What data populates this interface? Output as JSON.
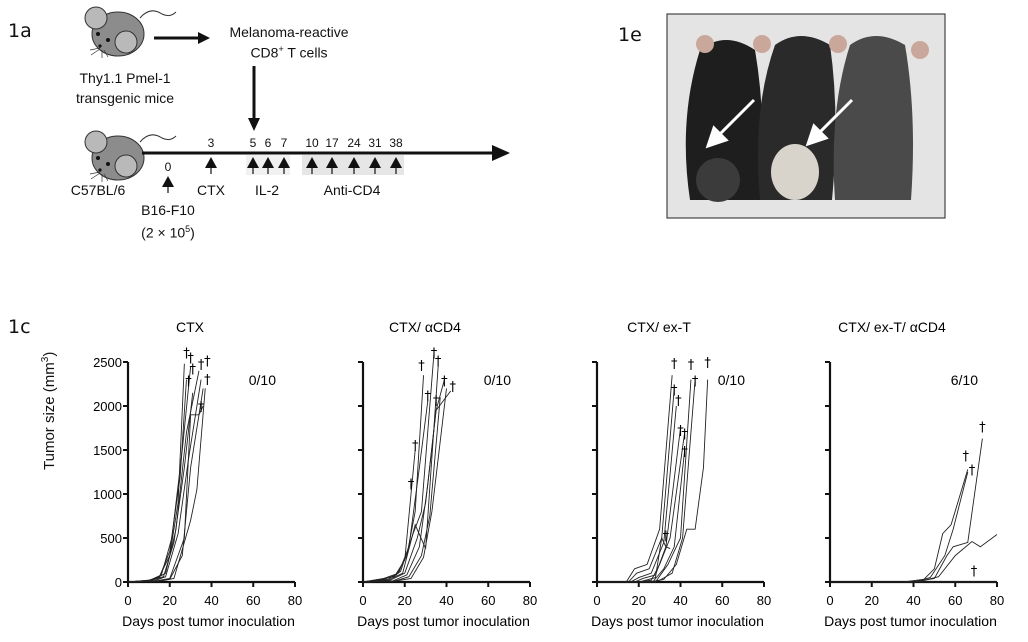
{
  "panel_labels": {
    "a": "1a",
    "e": "1e",
    "c": "1c"
  },
  "schematic": {
    "donor_label_1": "Thy1.1 Pmel-1",
    "donor_label_2": "transgenic mice",
    "cells_label_1": "Melanoma-reactive",
    "cells_label_2_main": "CD8",
    "cells_label_2_sup": "+",
    "cells_label_2_rest": " T cells",
    "host_label": "C57BL/6",
    "inoculation_day": "0",
    "inoculation_label": "B16-F10",
    "inoculation_dose_main": "(2 × 10",
    "inoculation_dose_sup": "5",
    "inoculation_dose_end": ")",
    "ctx_day": "3",
    "il2_days": [
      "5",
      "6",
      "7"
    ],
    "anticd4_days": [
      "10",
      "17",
      "24",
      "31",
      "38"
    ],
    "ctx_label": "CTX",
    "il2_label": "IL-2",
    "anticd4_label": "Anti-CD4",
    "icons": [
      "mouse-icon",
      "arrow-right-icon",
      "arrow-down-icon",
      "arrow-up-icon"
    ]
  },
  "photo": {
    "description_icon": "mice-photo",
    "arrows": 2
  },
  "chart_data": [
    {
      "type": "line",
      "title": "CTX",
      "annotation": "0/10",
      "xlabel": "Days post tumor inoculation",
      "ylabel": "Tumor size (mm",
      "ylabel_sup": "3",
      "ylabel_end": ")",
      "xlim": [
        0,
        80
      ],
      "ylim": [
        0,
        2500
      ],
      "xticks": [
        0,
        20,
        40,
        60,
        80
      ],
      "yticks": [
        0,
        500,
        1000,
        1500,
        2000,
        2500
      ],
      "show_ytick_labels": true,
      "series": [
        {
          "points": [
            [
              0,
              0
            ],
            [
              10,
              20
            ],
            [
              15,
              60
            ],
            [
              20,
              300
            ],
            [
              24,
              900
            ],
            [
              27,
              2480
            ]
          ]
        },
        {
          "points": [
            [
              0,
              0
            ],
            [
              10,
              20
            ],
            [
              15,
              50
            ],
            [
              20,
              350
            ],
            [
              25,
              1200
            ],
            [
              28,
              2300
            ]
          ]
        },
        {
          "points": [
            [
              0,
              0
            ],
            [
              10,
              15
            ],
            [
              16,
              80
            ],
            [
              21,
              500
            ],
            [
              26,
              1500
            ],
            [
              30,
              2450
            ]
          ]
        },
        {
          "points": [
            [
              0,
              0
            ],
            [
              10,
              10
            ],
            [
              17,
              60
            ],
            [
              22,
              450
            ],
            [
              27,
              1300
            ],
            [
              31,
              2150
            ]
          ]
        },
        {
          "points": [
            [
              0,
              0
            ],
            [
              12,
              20
            ],
            [
              18,
              100
            ],
            [
              23,
              600
            ],
            [
              28,
              1700
            ],
            [
              34,
              2400
            ]
          ]
        },
        {
          "points": [
            [
              0,
              0
            ],
            [
              12,
              10
            ],
            [
              18,
              60
            ],
            [
              24,
              550
            ],
            [
              29,
              1400
            ],
            [
              35,
              2300
            ]
          ]
        },
        {
          "points": [
            [
              0,
              0
            ],
            [
              14,
              10
            ],
            [
              20,
              30
            ],
            [
              26,
              300
            ],
            [
              30,
              1300
            ],
            [
              36,
              2200
            ]
          ]
        },
        {
          "points": [
            [
              0,
              0
            ],
            [
              15,
              10
            ],
            [
              22,
              40
            ],
            [
              30,
              700
            ],
            [
              33,
              1050
            ],
            [
              37,
              2200
            ]
          ]
        },
        {
          "points": [
            [
              0,
              0
            ],
            [
              13,
              10
            ],
            [
              20,
              40
            ],
            [
              27,
              500
            ],
            [
              30,
              1900
            ],
            [
              34,
              1900
            ],
            [
              36,
              2000
            ]
          ]
        }
      ],
      "deaths": [
        [
          28,
          2620
        ],
        [
          30,
          2560
        ],
        [
          29,
          2300
        ],
        [
          31,
          2440
        ],
        [
          35,
          2490
        ],
        [
          38,
          2530
        ],
        [
          38,
          2320
        ],
        [
          35,
          2010
        ]
      ]
    },
    {
      "type": "line",
      "title": "CTX/ αCD4",
      "annotation": "0/10",
      "xlabel": "Days post tumor inoculation",
      "xlim": [
        0,
        80
      ],
      "ylim": [
        0,
        2500
      ],
      "xticks": [
        0,
        20,
        40,
        60,
        80
      ],
      "yticks": [
        0,
        500,
        1000,
        1500,
        2000,
        2500
      ],
      "show_ytick_labels": false,
      "series": [
        {
          "points": [
            [
              0,
              0
            ],
            [
              10,
              40
            ],
            [
              15,
              60
            ],
            [
              20,
              250
            ],
            [
              23,
              1000
            ],
            [
              25,
              1500
            ]
          ]
        },
        {
          "points": [
            [
              0,
              0
            ],
            [
              10,
              30
            ],
            [
              16,
              80
            ],
            [
              21,
              300
            ],
            [
              25,
              800
            ],
            [
              29,
              2350
            ]
          ]
        },
        {
          "points": [
            [
              0,
              0
            ],
            [
              10,
              40
            ],
            [
              17,
              100
            ],
            [
              22,
              400
            ],
            [
              27,
              1300
            ],
            [
              31,
              2050
            ]
          ]
        },
        {
          "points": [
            [
              0,
              0
            ],
            [
              12,
              30
            ],
            [
              18,
              120
            ],
            [
              24,
              550
            ],
            [
              28,
              800
            ],
            [
              34,
              2600
            ]
          ]
        },
        {
          "points": [
            [
              0,
              0
            ],
            [
              12,
              20
            ],
            [
              19,
              100
            ],
            [
              25,
              650
            ],
            [
              30,
              380
            ],
            [
              36,
              2450
            ]
          ]
        },
        {
          "points": [
            [
              0,
              0
            ],
            [
              13,
              20
            ],
            [
              20,
              100
            ],
            [
              26,
              500
            ],
            [
              30,
              900
            ],
            [
              35,
              1950
            ],
            [
              39,
              2300
            ]
          ]
        },
        {
          "points": [
            [
              0,
              0
            ],
            [
              14,
              10
            ],
            [
              21,
              80
            ],
            [
              27,
              400
            ],
            [
              31,
              1100
            ],
            [
              35,
              1950
            ],
            [
              42,
              2170
            ]
          ]
        },
        {
          "points": [
            [
              0,
              0
            ],
            [
              15,
              10
            ],
            [
              22,
              60
            ],
            [
              28,
              300
            ],
            [
              32,
              750
            ],
            [
              37,
              2100
            ]
          ]
        },
        {
          "points": [
            [
              0,
              0
            ],
            [
              15,
              10
            ],
            [
              23,
              40
            ],
            [
              29,
              280
            ],
            [
              33,
              800
            ],
            [
              40,
              2200
            ]
          ]
        }
      ],
      "deaths": [
        [
          34,
          2620
        ],
        [
          36,
          2530
        ],
        [
          28,
          2480
        ],
        [
          39,
          2300
        ],
        [
          43,
          2240
        ],
        [
          31,
          2130
        ],
        [
          35,
          2080
        ],
        [
          25,
          1570
        ],
        [
          23,
          1130
        ]
      ]
    },
    {
      "type": "line",
      "title": "CTX/ ex-T",
      "annotation": "0/10",
      "xlabel": "Days post tumor inoculation",
      "xlim": [
        0,
        80
      ],
      "ylim": [
        0,
        2500
      ],
      "xticks": [
        0,
        20,
        40,
        60,
        80
      ],
      "yticks": [
        0,
        500,
        1000,
        1500,
        2000,
        2500
      ],
      "show_ytick_labels": false,
      "series": [
        {
          "points": [
            [
              0,
              0
            ],
            [
              14,
              0
            ],
            [
              18,
              150
            ],
            [
              24,
              200
            ],
            [
              30,
              600
            ],
            [
              36,
              2350
            ]
          ]
        },
        {
          "points": [
            [
              0,
              0
            ],
            [
              15,
              0
            ],
            [
              19,
              100
            ],
            [
              25,
              150
            ],
            [
              31,
              500
            ],
            [
              37,
              2200
            ]
          ]
        },
        {
          "points": [
            [
              0,
              0
            ],
            [
              16,
              0
            ],
            [
              20,
              50
            ],
            [
              26,
              100
            ],
            [
              32,
              450
            ],
            [
              38,
              2000
            ]
          ]
        },
        {
          "points": [
            [
              0,
              0
            ],
            [
              18,
              0
            ],
            [
              22,
              40
            ],
            [
              28,
              80
            ],
            [
              33,
              400
            ],
            [
              40,
              1750
            ]
          ]
        },
        {
          "points": [
            [
              0,
              0
            ],
            [
              20,
              0
            ],
            [
              26,
              20
            ],
            [
              30,
              200
            ],
            [
              35,
              500
            ],
            [
              42,
              1700
            ]
          ]
        },
        {
          "points": [
            [
              0,
              0
            ],
            [
              22,
              0
            ],
            [
              27,
              10
            ],
            [
              32,
              150
            ],
            [
              37,
              400
            ],
            [
              42,
              1500
            ]
          ]
        },
        {
          "points": [
            [
              0,
              0
            ],
            [
              24,
              0
            ],
            [
              28,
              0
            ],
            [
              34,
              200
            ],
            [
              40,
              500
            ],
            [
              45,
              2300
            ]
          ]
        },
        {
          "points": [
            [
              0,
              0
            ],
            [
              25,
              0
            ],
            [
              30,
              20
            ],
            [
              36,
              100
            ],
            [
              41,
              500
            ],
            [
              47,
              2300
            ]
          ]
        },
        {
          "points": [
            [
              0,
              0
            ],
            [
              26,
              0
            ],
            [
              32,
              30
            ],
            [
              38,
              200
            ],
            [
              43,
              600
            ],
            [
              47,
              600
            ],
            [
              51,
              1300
            ],
            [
              53,
              2300
            ]
          ]
        },
        {
          "points": [
            [
              0,
              0
            ],
            [
              20,
              0
            ],
            [
              28,
              50
            ],
            [
              31,
              500
            ],
            [
              33,
              400
            ],
            [
              35,
              380
            ]
          ]
        }
      ],
      "deaths": [
        [
          37,
          2500
        ],
        [
          45,
          2490
        ],
        [
          53,
          2510
        ],
        [
          47,
          2300
        ],
        [
          37,
          2200
        ],
        [
          39,
          2080
        ],
        [
          40,
          1740
        ],
        [
          42,
          1700
        ],
        [
          42,
          1500
        ],
        [
          33,
          540
        ]
      ]
    },
    {
      "type": "line",
      "title": "CTX/ ex-T/ αCD4",
      "annotation": "6/10",
      "xlabel": "Days post tumor inoculation",
      "xlim": [
        0,
        80
      ],
      "ylim": [
        0,
        2500
      ],
      "xticks": [
        0,
        20,
        40,
        60,
        80
      ],
      "yticks": [
        0,
        500,
        1000,
        1500,
        2000,
        2500
      ],
      "show_ytick_labels": false,
      "series": [
        {
          "points": [
            [
              0,
              0
            ],
            [
              35,
              0
            ],
            [
              45,
              30
            ],
            [
              50,
              150
            ],
            [
              54,
              550
            ],
            [
              58,
              650
            ],
            [
              66,
              1280
            ]
          ]
        },
        {
          "points": [
            [
              0,
              0
            ],
            [
              40,
              0
            ],
            [
              48,
              50
            ],
            [
              55,
              300
            ],
            [
              59,
              600
            ],
            [
              66,
              1250
            ]
          ]
        },
        {
          "points": [
            [
              0,
              0
            ],
            [
              40,
              0
            ],
            [
              50,
              40
            ],
            [
              56,
              300
            ],
            [
              59,
              400
            ],
            [
              66,
              450
            ],
            [
              73,
              1630
            ]
          ]
        },
        {
          "points": [
            [
              0,
              0
            ],
            [
              42,
              0
            ],
            [
              52,
              60
            ],
            [
              60,
              300
            ],
            [
              68,
              460
            ],
            [
              72,
              400
            ],
            [
              80,
              540
            ]
          ]
        },
        {
          "points": [
            [
              0,
              0
            ],
            [
              80,
              0
            ]
          ]
        }
      ],
      "deaths": [
        [
          65,
          1450
        ],
        [
          68,
          1290
        ],
        [
          73,
          1780
        ],
        [
          69,
          140
        ]
      ]
    }
  ]
}
